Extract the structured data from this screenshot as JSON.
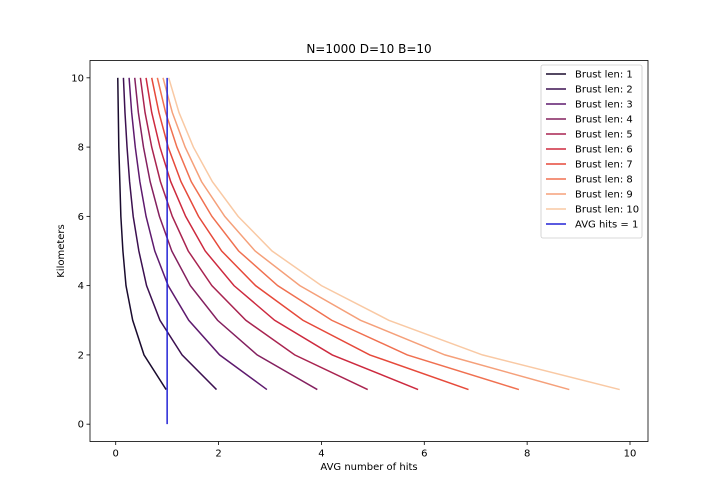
{
  "chart_data": {
    "type": "line",
    "title": "N=1000 D=10 B=10",
    "xlabel": "AVG number of hits",
    "ylabel": "Kilometers",
    "xlim": [
      -0.5,
      10.35
    ],
    "ylim": [
      -0.5,
      10.5
    ],
    "xticks": [
      0,
      2,
      4,
      6,
      8,
      10
    ],
    "yticks": [
      0,
      2,
      4,
      6,
      8,
      10
    ],
    "grid": false,
    "legend_position": "top-right",
    "y": [
      1,
      2,
      3,
      4,
      5,
      6,
      7,
      8,
      9,
      10
    ],
    "series": [
      {
        "name": "Brust len: 1",
        "color": "#1a0b2e",
        "x": [
          0.98,
          0.55,
          0.33,
          0.2,
          0.14,
          0.1,
          0.08,
          0.06,
          0.05,
          0.04
        ]
      },
      {
        "name": "Brust len: 2",
        "color": "#3c1050",
        "x": [
          1.96,
          1.29,
          0.86,
          0.6,
          0.45,
          0.34,
          0.27,
          0.22,
          0.18,
          0.15
        ]
      },
      {
        "name": "Brust len: 3",
        "color": "#5e1a6e",
        "x": [
          2.94,
          2.02,
          1.42,
          1.02,
          0.76,
          0.59,
          0.47,
          0.38,
          0.31,
          0.26
        ]
      },
      {
        "name": "Brust len: 4",
        "color": "#84205f",
        "x": [
          3.92,
          2.75,
          1.98,
          1.45,
          1.09,
          0.85,
          0.67,
          0.54,
          0.44,
          0.37
        ]
      },
      {
        "name": "Brust len: 5",
        "color": "#a92450",
        "x": [
          4.9,
          3.48,
          2.53,
          1.87,
          1.41,
          1.1,
          0.87,
          0.7,
          0.57,
          0.48
        ]
      },
      {
        "name": "Brust len: 6",
        "color": "#cd2a3f",
        "x": [
          5.88,
          4.21,
          3.09,
          2.3,
          1.74,
          1.36,
          1.07,
          0.86,
          0.7,
          0.59
        ]
      },
      {
        "name": "Brust len: 7",
        "color": "#e6493a",
        "x": [
          6.86,
          4.94,
          3.64,
          2.72,
          2.06,
          1.61,
          1.27,
          1.02,
          0.84,
          0.7
        ]
      },
      {
        "name": "Brust len: 8",
        "color": "#f07050",
        "x": [
          7.84,
          5.67,
          4.2,
          3.15,
          2.39,
          1.87,
          1.47,
          1.19,
          0.97,
          0.81
        ]
      },
      {
        "name": "Brust len: 9",
        "color": "#f5a07a",
        "x": [
          8.82,
          6.4,
          4.76,
          3.58,
          2.71,
          2.12,
          1.67,
          1.35,
          1.1,
          0.92
        ]
      },
      {
        "name": "Brust len: 10",
        "color": "#f9c9a4",
        "x": [
          9.8,
          7.13,
          5.31,
          4.0,
          3.04,
          2.38,
          1.88,
          1.51,
          1.23,
          1.03
        ]
      }
    ],
    "reference_line": {
      "name": "AVG hits = 1",
      "color": "#2424d6",
      "x": [
        1,
        1
      ],
      "y": [
        0,
        10
      ]
    }
  }
}
